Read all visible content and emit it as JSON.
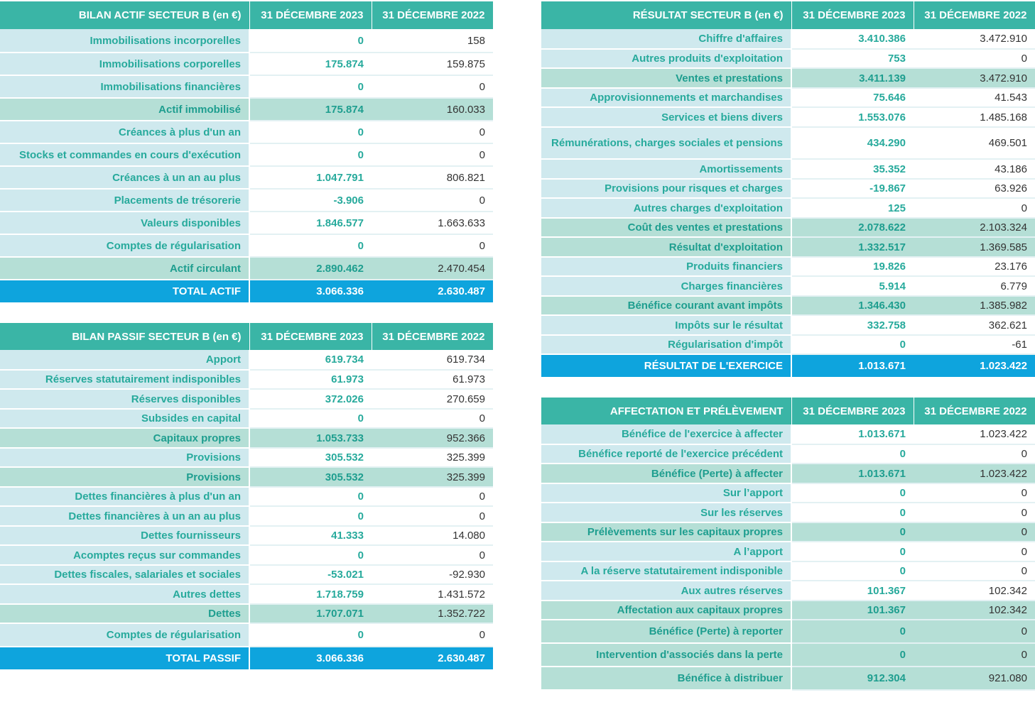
{
  "headers": {
    "col_2023": "31 DÉCEMBRE 2023",
    "col_2022": "31 DÉCEMBRE 2022"
  },
  "bilan_actif": {
    "title": "BILAN ACTIF SECTEUR B (en €)",
    "rows": [
      {
        "label": "Immobilisations incorporelles",
        "v2023": "0",
        "v2022": "158"
      },
      {
        "label": "Immobilisations corporelles",
        "v2023": "175.874",
        "v2022": "159.875"
      },
      {
        "label": "Immobilisations financières",
        "v2023": "0",
        "v2022": "0"
      },
      {
        "label": "Actif immobilisé",
        "v2023": "175.874",
        "v2022": "160.033"
      },
      {
        "label": "Créances à plus d'un an",
        "v2023": "0",
        "v2022": "0"
      },
      {
        "label": "Stocks et commandes en cours d'exécution",
        "v2023": "0",
        "v2022": "0"
      },
      {
        "label": "Créances à un an au plus",
        "v2023": "1.047.791",
        "v2022": "806.821"
      },
      {
        "label": "Placements de trésorerie",
        "v2023": "-3.906",
        "v2022": "0"
      },
      {
        "label": "Valeurs disponibles",
        "v2023": "1.846.577",
        "v2022": "1.663.633"
      },
      {
        "label": "Comptes de régularisation",
        "v2023": "0",
        "v2022": "0"
      },
      {
        "label": "Actif circulant",
        "v2023": "2.890.462",
        "v2022": "2.470.454"
      },
      {
        "label": "TOTAL ACTIF",
        "v2023": "3.066.336",
        "v2022": "2.630.487"
      }
    ]
  },
  "bilan_passif": {
    "title": "BILAN PASSIF SECTEUR B (en €)",
    "rows": [
      {
        "label": "Apport",
        "v2023": "619.734",
        "v2022": "619.734"
      },
      {
        "label": "Réserves statutairement indisponibles",
        "v2023": "61.973",
        "v2022": "61.973"
      },
      {
        "label": "Réserves disponibles",
        "v2023": "372.026",
        "v2022": "270.659"
      },
      {
        "label": "Subsides en capital",
        "v2023": "0",
        "v2022": "0"
      },
      {
        "label": "Capitaux propres",
        "v2023": "1.053.733",
        "v2022": "952.366"
      },
      {
        "label": "Provisions",
        "v2023": "305.532",
        "v2022": "325.399"
      },
      {
        "label": "Provisions",
        "v2023": "305.532",
        "v2022": "325.399"
      },
      {
        "label": "Dettes financières à plus d'un an",
        "v2023": "0",
        "v2022": "0"
      },
      {
        "label": "Dettes financières à un an au plus",
        "v2023": "0",
        "v2022": "0"
      },
      {
        "label": "Dettes fournisseurs",
        "v2023": "41.333",
        "v2022": "14.080"
      },
      {
        "label": "Acomptes reçus sur commandes",
        "v2023": "0",
        "v2022": "0"
      },
      {
        "label": "Dettes fiscales, salariales et sociales",
        "v2023": "-53.021",
        "v2022": "-92.930"
      },
      {
        "label": "Autres dettes",
        "v2023": "1.718.759",
        "v2022": "1.431.572"
      },
      {
        "label": "Dettes",
        "v2023": "1.707.071",
        "v2022": "1.352.722"
      },
      {
        "label": "Comptes de régularisation",
        "v2023": "0",
        "v2022": "0"
      },
      {
        "label": "TOTAL PASSIF",
        "v2023": "3.066.336",
        "v2022": "2.630.487"
      }
    ]
  },
  "resultat": {
    "title": "RÉSULTAT SECTEUR B (en €)",
    "rows": [
      {
        "label": "Chiffre d'affaires",
        "v2023": "3.410.386",
        "v2022": "3.472.910"
      },
      {
        "label": "Autres produits d'exploitation",
        "v2023": "753",
        "v2022": "0"
      },
      {
        "label": "Ventes et prestations",
        "v2023": "3.411.139",
        "v2022": "3.472.910"
      },
      {
        "label": "Approvisionnements et marchandises",
        "v2023": "75.646",
        "v2022": "41.543"
      },
      {
        "label": "Services et biens divers",
        "v2023": "1.553.076",
        "v2022": "1.485.168"
      },
      {
        "label": "Rémunérations, charges sociales et pensions",
        "v2023": "434.290",
        "v2022": "469.501"
      },
      {
        "label": "Amortissements",
        "v2023": "35.352",
        "v2022": "43.186"
      },
      {
        "label": "Provisions pour risques et charges",
        "v2023": "-19.867",
        "v2022": "63.926"
      },
      {
        "label": "Autres charges d'exploitation",
        "v2023": "125",
        "v2022": "0"
      },
      {
        "label": "Coût des ventes et prestations",
        "v2023": "2.078.622",
        "v2022": "2.103.324"
      },
      {
        "label": "Résultat d'exploitation",
        "v2023": "1.332.517",
        "v2022": "1.369.585"
      },
      {
        "label": "Produits financiers",
        "v2023": "19.826",
        "v2022": "23.176"
      },
      {
        "label": "Charges financières",
        "v2023": "5.914",
        "v2022": "6.779"
      },
      {
        "label": "Bénéfice courant avant impôts",
        "v2023": "1.346.430",
        "v2022": "1.385.982"
      },
      {
        "label": "Impôts sur le résultat",
        "v2023": "332.758",
        "v2022": "362.621"
      },
      {
        "label": "Régularisation d'impôt",
        "v2023": "0",
        "v2022": "-61"
      },
      {
        "label": "RÉSULTAT DE L'EXERCICE",
        "v2023": "1.013.671",
        "v2022": "1.023.422"
      }
    ]
  },
  "affectation": {
    "title": "AFFECTATION ET PRÉLÈVEMENT",
    "rows": [
      {
        "label": "Bénéfice de l'exercice à affecter",
        "v2023": "1.013.671",
        "v2022": "1.023.422"
      },
      {
        "label": "Bénéfice reporté de l'exercice précédent",
        "v2023": "0",
        "v2022": "0"
      },
      {
        "label": "Bénéfice (Perte) à affecter",
        "v2023": "1.013.671",
        "v2022": "1.023.422"
      },
      {
        "label": "Sur l’apport",
        "v2023": "0",
        "v2022": "0"
      },
      {
        "label": "Sur les réserves",
        "v2023": "0",
        "v2022": "0"
      },
      {
        "label": "Prélèvements sur les capitaux propres",
        "v2023": "0",
        "v2022": "0"
      },
      {
        "label": "A l’apport",
        "v2023": "0",
        "v2022": "0"
      },
      {
        "label": "A la réserve statutairement indisponible",
        "v2023": "0",
        "v2022": "0"
      },
      {
        "label": "Aux autres réserves",
        "v2023": "101.367",
        "v2022": "102.342"
      },
      {
        "label": "Affectation aux capitaux propres",
        "v2023": "101.367",
        "v2022": "102.342"
      },
      {
        "label": "Bénéfice (Perte) à reporter",
        "v2023": "0",
        "v2022": "0"
      },
      {
        "label": "Intervention d'associés dans la perte",
        "v2023": "0",
        "v2022": "0"
      },
      {
        "label": "Bénéfice à distribuer",
        "v2023": "912.304",
        "v2022": "921.080"
      }
    ]
  }
}
